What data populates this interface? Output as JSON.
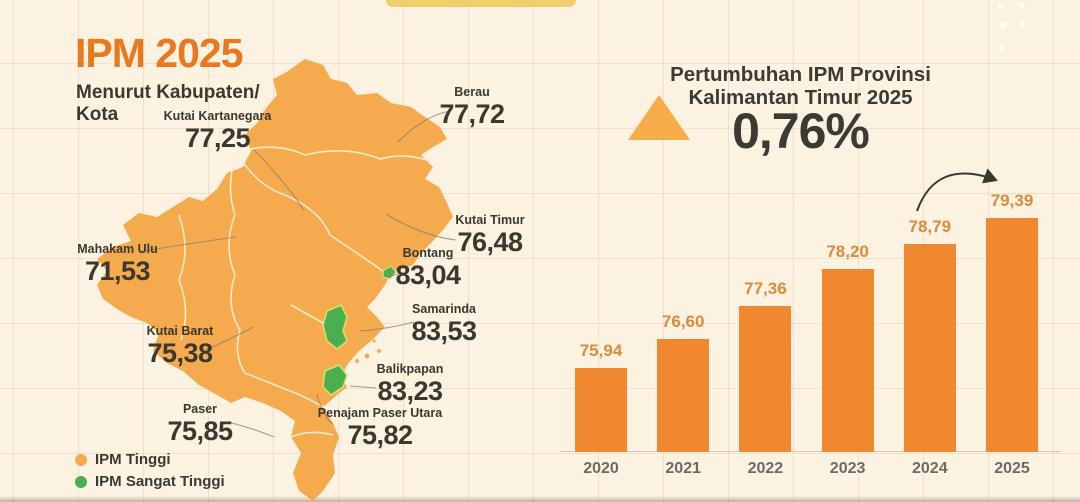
{
  "page": {
    "title": "IPM 2025",
    "subtitle_line1": "Menurut Kabupaten/",
    "subtitle_line2": "Kota"
  },
  "map": {
    "regions": [
      {
        "name": "Berau",
        "value": "77,72",
        "category": "IPM Tinggi"
      },
      {
        "name": "Kutai Kartanegara",
        "value": "77,25",
        "category": "IPM Tinggi"
      },
      {
        "name": "Kutai Timur",
        "value": "76,48",
        "category": "IPM Tinggi"
      },
      {
        "name": "Mahakam Ulu",
        "value": "71,53",
        "category": "IPM Tinggi"
      },
      {
        "name": "Bontang",
        "value": "83,04",
        "category": "IPM Sangat Tinggi"
      },
      {
        "name": "Samarinda",
        "value": "83,53",
        "category": "IPM Sangat Tinggi"
      },
      {
        "name": "Kutai Barat",
        "value": "75,38",
        "category": "IPM Tinggi"
      },
      {
        "name": "Balikpapan",
        "value": "83,23",
        "category": "IPM Sangat Tinggi"
      },
      {
        "name": "Paser",
        "value": "75,85",
        "category": "IPM Tinggi"
      },
      {
        "name": "Penajam Paser Utara",
        "value": "75,82",
        "category": "IPM Tinggi"
      }
    ],
    "legend": [
      {
        "label": "IPM Tinggi",
        "color": "#F5AB4D"
      },
      {
        "label": "IPM Sangat Tinggi",
        "color": "#4BAE4F"
      }
    ]
  },
  "growth": {
    "title_line1": "Pertumbuhan IPM Provinsi",
    "title_line2": "Kalimantan Timur 2025",
    "value": "0,76%"
  },
  "chart_data": {
    "type": "bar",
    "title": "Pertumbuhan IPM Provinsi Kalimantan Timur 2025",
    "categories": [
      "2020",
      "2021",
      "2022",
      "2023",
      "2024",
      "2025"
    ],
    "values": [
      75.94,
      76.6,
      77.36,
      78.2,
      78.79,
      79.39
    ],
    "value_labels": [
      "75,94",
      "76,60",
      "77,36",
      "78,20",
      "78,79",
      "79,39"
    ],
    "xlabel": "",
    "ylabel": "",
    "ylim": [
      74,
      80
    ],
    "grid": true,
    "legend_position": "none",
    "bar_color": "#F0882F",
    "annotation": "0,76%"
  },
  "colors": {
    "background": "#FBF2E2",
    "map_orange": "#F5AB4D",
    "city_green": "#4BAE4F",
    "bar_orange": "#F0882F",
    "title_orange": "#E8791F",
    "dark_text": "#3B3A33",
    "triangle_orange": "#F6AD49"
  }
}
